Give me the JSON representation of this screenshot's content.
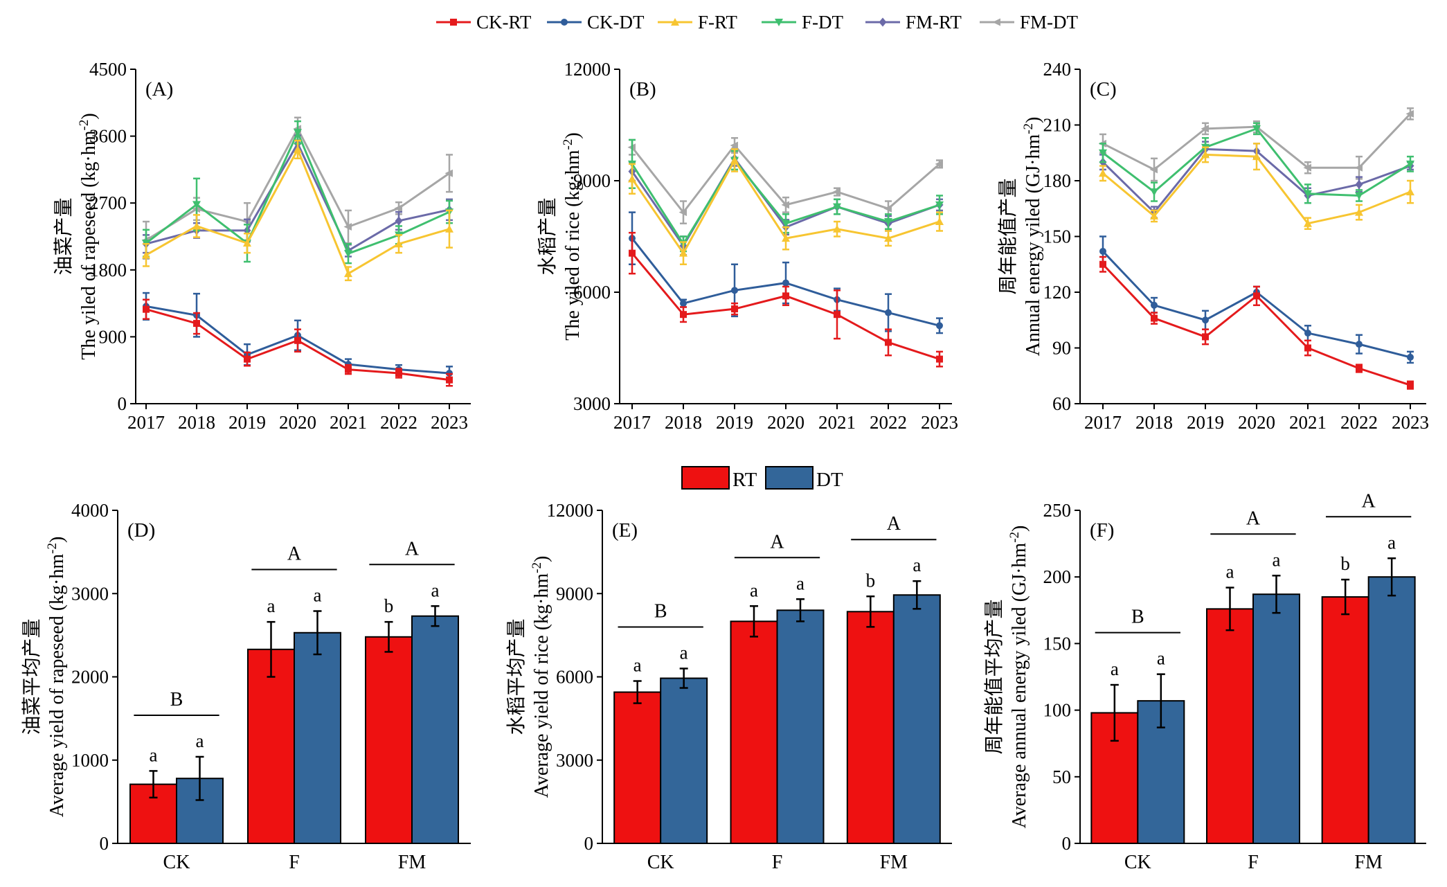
{
  "colors": {
    "CK-RT": "#e41a1c",
    "CK-DT": "#2f5d9a",
    "F-RT": "#f7c531",
    "F-DT": "#3fbf6f",
    "FM-RT": "#6b6aa8",
    "FM-DT": "#a6a6a6",
    "RT": "#ee1111",
    "DT": "#336699"
  },
  "top_legend": [
    {
      "name": "CK-RT",
      "marker": "square"
    },
    {
      "name": "CK-DT",
      "marker": "circle"
    },
    {
      "name": "F-RT",
      "marker": "triangle-up"
    },
    {
      "name": "F-DT",
      "marker": "triangle-down"
    },
    {
      "name": "FM-RT",
      "marker": "diamond"
    },
    {
      "name": "FM-DT",
      "marker": "arrow-left"
    }
  ],
  "bar_legend": [
    "RT",
    "DT"
  ],
  "chart_data": [
    {
      "id": "A",
      "panel_label": "(A)",
      "type": "line",
      "ylabel_cn": "油菜产量",
      "ylabel_en_main": "The yiled of rapeseed (kg·hm",
      "ylabel_sup": "-2",
      "ylabel_close": ")",
      "x": [
        "2017",
        "2018",
        "2019",
        "2020",
        "2021",
        "2022",
        "2023"
      ],
      "ylim": [
        0,
        4500
      ],
      "yticks": [
        "0",
        "900",
        "1800",
        "2700",
        "3600",
        "4500"
      ],
      "series": [
        {
          "name": "CK-RT",
          "values": [
            1270,
            1080,
            600,
            850,
            460,
            410,
            320
          ],
          "err": [
            130,
            140,
            90,
            150,
            60,
            60,
            80
          ]
        },
        {
          "name": "CK-DT",
          "values": [
            1310,
            1190,
            660,
            920,
            530,
            460,
            410
          ],
          "err": [
            180,
            290,
            140,
            200,
            70,
            60,
            90
          ]
        },
        {
          "name": "F-RT",
          "values": [
            2000,
            2390,
            2160,
            3420,
            1750,
            2150,
            2350
          ],
          "err": [
            150,
            150,
            130,
            120,
            90,
            120,
            250
          ]
        },
        {
          "name": "F-DT",
          "values": [
            2160,
            2680,
            2160,
            3650,
            2020,
            2270,
            2580
          ],
          "err": [
            180,
            350,
            250,
            150,
            130,
            120,
            150
          ]
        },
        {
          "name": "FM-RT",
          "values": [
            2150,
            2330,
            2330,
            3500,
            2060,
            2460,
            2610
          ],
          "err": [
            120,
            100,
            150,
            110,
            80,
            120,
            140
          ]
        },
        {
          "name": "FM-DT",
          "values": [
            2200,
            2620,
            2450,
            3700,
            2380,
            2630,
            3100
          ],
          "err": [
            250,
            150,
            250,
            150,
            220,
            80,
            250
          ]
        }
      ]
    },
    {
      "id": "B",
      "panel_label": "(B)",
      "type": "line",
      "ylabel_cn": "水稻产量",
      "ylabel_en_main": "The yiled of rice (kg·hm",
      "ylabel_sup": "-2",
      "ylabel_close": ")",
      "x": [
        "2017",
        "2018",
        "2019",
        "2020",
        "2021",
        "2022",
        "2023"
      ],
      "ylim": [
        3000,
        12000
      ],
      "yticks": [
        "3000",
        "6000",
        "9000",
        "12000"
      ],
      "series": [
        {
          "name": "CK-RT",
          "values": [
            7050,
            5400,
            5550,
            5900,
            5400,
            4650,
            4200
          ],
          "err": [
            550,
            200,
            150,
            250,
            650,
            350,
            200
          ]
        },
        {
          "name": "CK-DT",
          "values": [
            7450,
            5700,
            6050,
            6250,
            5800,
            5450,
            5100
          ],
          "err": [
            700,
            100,
            700,
            550,
            300,
            500,
            200
          ]
        },
        {
          "name": "F-RT",
          "values": [
            9050,
            7050,
            9550,
            7450,
            7700,
            7450,
            7900
          ],
          "err": [
            400,
            300,
            300,
            300,
            200,
            200,
            250
          ]
        },
        {
          "name": "F-DT",
          "values": [
            9450,
            7300,
            9550,
            7850,
            8300,
            7900,
            8350
          ],
          "err": [
            650,
            200,
            250,
            250,
            200,
            200,
            250
          ]
        },
        {
          "name": "FM-RT",
          "values": [
            9250,
            7250,
            9600,
            7750,
            8300,
            7850,
            8350
          ],
          "err": [
            250,
            250,
            200,
            200,
            200,
            200,
            150
          ]
        },
        {
          "name": "FM-DT",
          "values": [
            9900,
            8150,
            9950,
            8350,
            8700,
            8250,
            9450
          ],
          "err": [
            200,
            300,
            200,
            200,
            100,
            200,
            100
          ]
        }
      ]
    },
    {
      "id": "C",
      "panel_label": "(C)",
      "type": "line",
      "ylabel_cn": "周年能值产量",
      "ylabel_en_main": "Annual energy yiled (GJ·hm",
      "ylabel_sup": "-2",
      "ylabel_close": ")",
      "x": [
        "2017",
        "2018",
        "2019",
        "2020",
        "2021",
        "2022",
        "2023"
      ],
      "ylim": [
        60,
        240
      ],
      "yticks": [
        "60",
        "90",
        "120",
        "150",
        "180",
        "210",
        "240"
      ],
      "series": [
        {
          "name": "CK-RT",
          "values": [
            135,
            106,
            96,
            118,
            90,
            79,
            70
          ],
          "err": [
            4,
            3,
            4,
            5,
            4,
            2,
            2
          ]
        },
        {
          "name": "CK-DT",
          "values": [
            142,
            113,
            105,
            120,
            98,
            92,
            85
          ],
          "err": [
            8,
            4,
            5,
            3,
            4,
            5,
            3
          ]
        },
        {
          "name": "F-RT",
          "values": [
            184,
            161,
            194,
            193,
            157,
            163,
            174
          ],
          "err": [
            4,
            3,
            4,
            7,
            3,
            4,
            6
          ]
        },
        {
          "name": "F-DT",
          "values": [
            195,
            174,
            198,
            208,
            173,
            172,
            189
          ],
          "err": [
            5,
            5,
            5,
            3,
            5,
            3,
            4
          ]
        },
        {
          "name": "FM-RT",
          "values": [
            190,
            163,
            197,
            196,
            172,
            178,
            188
          ],
          "err": [
            4,
            3,
            4,
            4,
            4,
            4,
            2
          ]
        },
        {
          "name": "FM-DT",
          "values": [
            200,
            186,
            208,
            209,
            187,
            187,
            216
          ],
          "err": [
            5,
            6,
            3,
            3,
            3,
            6,
            3
          ]
        }
      ]
    },
    {
      "id": "D",
      "panel_label": "(D)",
      "type": "bar",
      "ylabel_cn": "油菜平均产量",
      "ylabel_en_main": "Average yield of rapeseed (kg·hm",
      "ylabel_sup": "-2",
      "ylabel_close": ")",
      "categories": [
        "CK",
        "F",
        "FM"
      ],
      "ylim": [
        0,
        4000
      ],
      "yticks": [
        "0",
        "1000",
        "2000",
        "3000",
        "4000"
      ],
      "series": [
        {
          "name": "RT",
          "values": [
            710,
            2330,
            2480
          ],
          "err": [
            160,
            330,
            180
          ],
          "letters": [
            "a",
            "a",
            "b"
          ]
        },
        {
          "name": "DT",
          "values": [
            780,
            2530,
            2730
          ],
          "err": [
            260,
            260,
            120
          ],
          "letters": [
            "a",
            "a",
            "a"
          ]
        }
      ],
      "group_letters": [
        "B",
        "A",
        "A"
      ]
    },
    {
      "id": "E",
      "panel_label": "(E)",
      "type": "bar",
      "ylabel_cn": "水稻平均产量",
      "ylabel_en_main": "Average yield of rice (kg·hm",
      "ylabel_sup": "-2",
      "ylabel_close": ")",
      "categories": [
        "CK",
        "F",
        "FM"
      ],
      "ylim": [
        0,
        12000
      ],
      "yticks": [
        "0",
        "3000",
        "6000",
        "9000",
        "12000"
      ],
      "series": [
        {
          "name": "RT",
          "values": [
            5450,
            8000,
            8350
          ],
          "err": [
            400,
            550,
            550
          ],
          "letters": [
            "a",
            "a",
            "b"
          ]
        },
        {
          "name": "DT",
          "values": [
            5950,
            8400,
            8950
          ],
          "err": [
            350,
            400,
            500
          ],
          "letters": [
            "a",
            "a",
            "a"
          ]
        }
      ],
      "group_letters": [
        "B",
        "A",
        "A"
      ]
    },
    {
      "id": "F",
      "panel_label": "(F)",
      "type": "bar",
      "ylabel_cn": "周年能值平均产量",
      "ylabel_en_main": "Average annual energy yiled (GJ·hm",
      "ylabel_sup": "-2",
      "ylabel_close": ")",
      "categories": [
        "CK",
        "F",
        "FM"
      ],
      "ylim": [
        0,
        250
      ],
      "yticks": [
        "0",
        "50",
        "100",
        "150",
        "200",
        "250"
      ],
      "series": [
        {
          "name": "RT",
          "values": [
            98,
            176,
            185
          ],
          "err": [
            21,
            16,
            13
          ],
          "letters": [
            "a",
            "a",
            "b"
          ]
        },
        {
          "name": "DT",
          "values": [
            107,
            187,
            200
          ],
          "err": [
            20,
            14,
            14
          ],
          "letters": [
            "a",
            "a",
            "a"
          ]
        }
      ],
      "group_letters": [
        "B",
        "A",
        "A"
      ]
    }
  ]
}
